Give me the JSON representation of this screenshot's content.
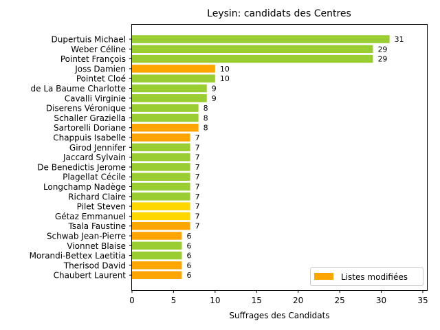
{
  "chart_data": {
    "type": "bar",
    "orientation": "horizontal",
    "title": "Leysin: candidats des Centres",
    "xlabel": "Suffrages des Candidats",
    "ylabel": "",
    "xlim": [
      0,
      35.5
    ],
    "xticks": [
      0,
      5,
      10,
      15,
      20,
      25,
      30,
      35
    ],
    "grid": false,
    "legend": {
      "label": "Listes modifiées",
      "color": "#ffa500",
      "placement": "lower-right"
    },
    "colors": {
      "green": "#9acd32",
      "orange": "#ffa500",
      "gold": "#ffd700"
    },
    "categories": [
      "Dupertuis Michael",
      "Weber Céline",
      "Pointet François",
      "Joss Damien",
      "Pointet Cloé",
      "de La Baume Charlotte",
      "Cavalli Virginie",
      "Diserens Véronique",
      "Schaller Graziella",
      "Sartorelli Doriane",
      "Chappuis Isabelle",
      "Girod Jennifer",
      "Jaccard Sylvain",
      "De Benedictis Jerome",
      "Plagellat Cécile",
      "Longchamp Nadège",
      "Richard Claire",
      "Pilet Steven",
      "Gétaz Emmanuel",
      "Tsala Faustine",
      "Schwab Jean-Pierre",
      "Vionnet Blaise",
      "Morandi-Bettex Laetitia",
      "Therisod David",
      "Chaubert Laurent"
    ],
    "values": [
      31,
      29,
      29,
      10,
      10,
      9,
      9,
      8,
      8,
      8,
      7,
      7,
      7,
      7,
      7,
      7,
      7,
      7,
      7,
      7,
      6,
      6,
      6,
      6,
      6
    ],
    "bar_colors": [
      "green",
      "green",
      "green",
      "orange",
      "green",
      "green",
      "green",
      "green",
      "green",
      "orange",
      "orange",
      "green",
      "green",
      "green",
      "green",
      "green",
      "green",
      "gold",
      "gold",
      "orange",
      "orange",
      "green",
      "green",
      "orange",
      "orange"
    ]
  }
}
